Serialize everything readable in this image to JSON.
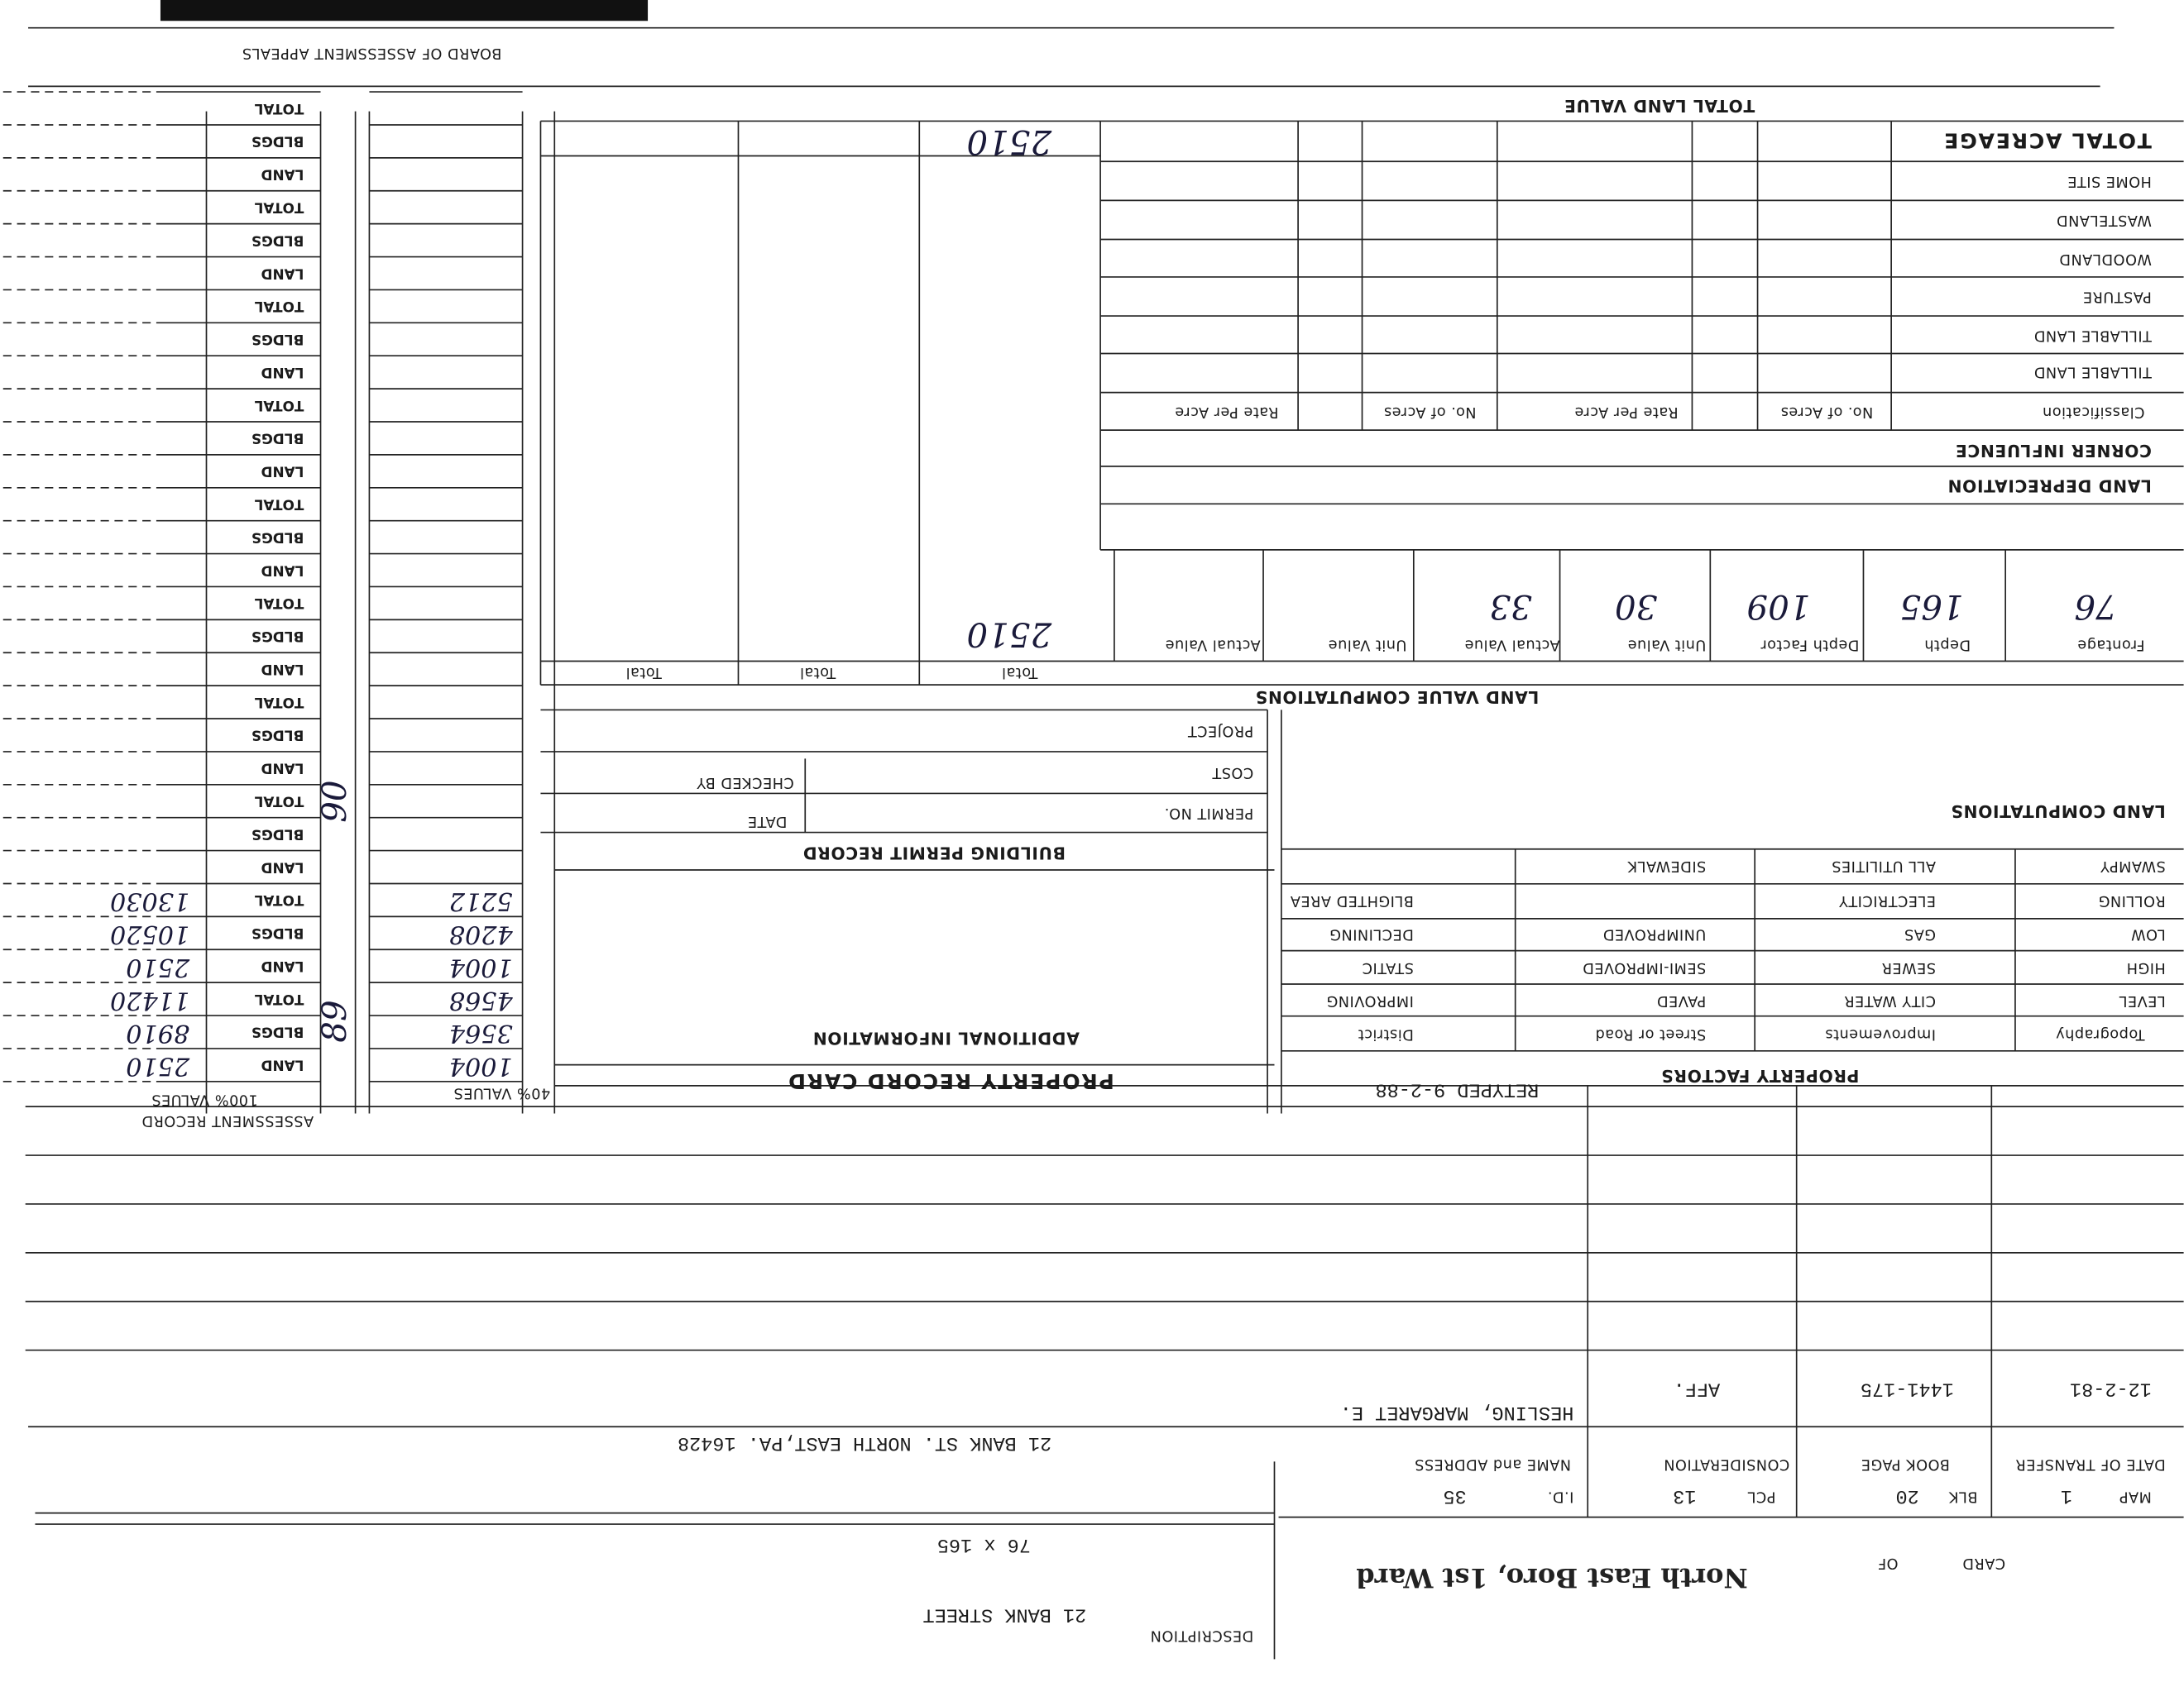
{
  "header": {
    "card": "CARD",
    "of": "OF",
    "municipality": "North East Boro, 1st Ward",
    "map_label": "MAP",
    "map": "1",
    "blk_label": "BLK",
    "blk": "20",
    "pcl_label": "PCL",
    "pcl": "13",
    "id_label": "I.D.",
    "id": "35",
    "description_label": "DESCRIPTION",
    "description": "21 BANK STREET",
    "dimensions": "76 x 165"
  },
  "transfers": {
    "columns": [
      "DATE OF TRANSFER",
      "BOOK PAGE",
      "CONSIDERATION",
      "NAME and ADDRESS"
    ],
    "rows": [
      [
        "12-2-81",
        "1441-175",
        "AFF.",
        "HESLING, MARGARET E."
      ]
    ],
    "address": "21 BANK ST. NORTH EAST,PA. 16428"
  },
  "property_factors": {
    "title": "PROPERTY FACTORS",
    "retyped": "RETYPED 9-2-88",
    "columns": [
      {
        "header": "Topography",
        "items": [
          "LEVEL",
          "HIGH",
          "LOW",
          "ROLLING",
          "SWAMPY"
        ]
      },
      {
        "header": "Improvements",
        "items": [
          "CITY WATER",
          "SEWER",
          "GAS",
          "ELECTRICITY",
          "ALL UTILITIES"
        ]
      },
      {
        "header": "Street or Road",
        "items": [
          "PAVED",
          "SEMI-IMPROVED",
          "UNIMPROVED",
          "SIDEWALK"
        ]
      },
      {
        "header": "District",
        "items": [
          "IMPROVING",
          "STATIC",
          "DECLINING",
          "BLIGHTED AREA"
        ]
      }
    ]
  },
  "land_computations": "LAND COMPUTATIONS",
  "record_card": {
    "title": "PROPERTY RECORD CARD",
    "additional_information": "ADDITIONAL INFORMATION",
    "building_permit": {
      "title": "BUILDING PERMIT RECORD",
      "permit_no": "PERMIT NO.",
      "cost": "COST",
      "project": "PROJECT",
      "date": "DATE",
      "checked_by": "CHECKED BY"
    }
  },
  "land_value": {
    "title": "LAND VALUE COMPUTATIONS",
    "columns": [
      "Frontage",
      "Depth",
      "Depth Factor",
      "Unit Value",
      "Actual Value",
      "Unit Value",
      "Actual Value",
      "Total",
      "Total",
      "Total"
    ],
    "row": [
      "76",
      "165",
      "109",
      "30",
      "33"
    ],
    "total": "2510"
  },
  "acreage": {
    "land_depreciation": "LAND DEPRECIATION",
    "corner_influence": "CORNER INFLUENCE",
    "columns": [
      "Classification",
      "No. of Acres",
      "Rate Per Acre",
      "No. of Acres",
      "Rate Per Acre"
    ],
    "rows": [
      "TILLABLE LAND",
      "TILLABLE LAND",
      "PASTURE",
      "WOODLAND",
      "WASTELAND",
      "HOME SITE",
      "TOTAL ACREAGE"
    ],
    "total_land_value_label": "TOTAL LAND VALUE",
    "total_land_value": "2510"
  },
  "assessment": {
    "title": "ASSESSMENT RECORD",
    "col_100": "100% VALUES",
    "col_40": "40% VALUES",
    "row_labels": [
      "LAND",
      "BLDGS",
      "TOTAL"
    ],
    "entries": [
      {
        "year": "89",
        "values_40": [
          "1004",
          "3564",
          "4568"
        ],
        "values_100": [
          "2510",
          "8910",
          "11420"
        ]
      },
      {
        "year": "90",
        "values_40": [
          "1004",
          "4208",
          "5212"
        ],
        "values_100": [
          "2510",
          "10520",
          "13030"
        ]
      }
    ]
  },
  "footer": "BOARD OF ASSESSMENT APPEALS"
}
